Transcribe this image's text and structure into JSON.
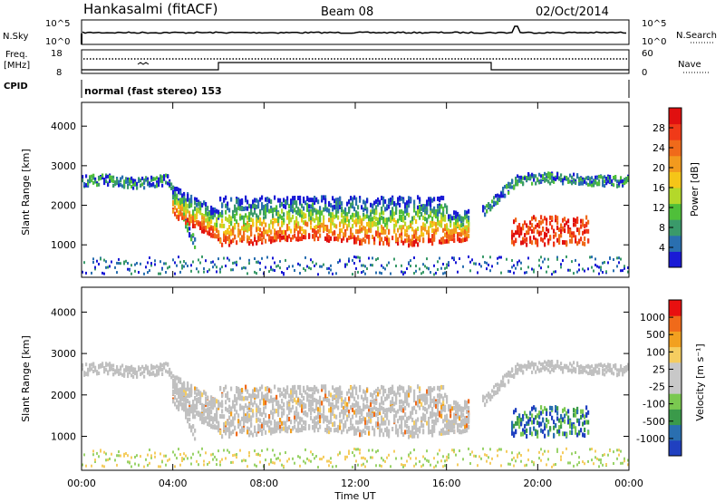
{
  "header": {
    "station": "Hankasalmi (fitACF)",
    "beam": "Beam 08",
    "date": "02/Oct/2014"
  },
  "sky_panel": {
    "label": "N.Sky",
    "left_ticks": [
      "10^5",
      "10^0"
    ],
    "right_ticks": [
      "10^5",
      "10^0"
    ],
    "right_label": "N.Search"
  },
  "freq_panel": {
    "label_line1": "Freq.",
    "label_line2": "[MHz]",
    "left_ticks": [
      "18",
      "8"
    ],
    "right_ticks": [
      "60",
      "0"
    ],
    "right_label": "Nave"
  },
  "cpid_panel": {
    "label": "CPID",
    "mode_text": "normal (fast stereo) 153"
  },
  "x_axis": {
    "label": "Time UT",
    "ticks": [
      "00:00",
      "04:00",
      "08:00",
      "12:00",
      "16:00",
      "20:00",
      "00:00"
    ]
  },
  "colors": {
    "power": [
      "#1a1ad6",
      "#2a6fb0",
      "#3a9a6a",
      "#4fbf3a",
      "#b4d82a",
      "#f5c518",
      "#f29a1e",
      "#f06a1a",
      "#f03a18",
      "#e01010"
    ],
    "velocity": [
      "#e81010",
      "#f06a1a",
      "#f2a020",
      "#f5cd60",
      "#c8c8c8",
      "#c8c8c8",
      "#7ac850",
      "#3a9a4a",
      "#2a6fb0",
      "#2040c0"
    ],
    "ground_scatter": "#c0c0c0"
  },
  "chart_data": [
    {
      "type": "heatmap",
      "quantity": "power",
      "ylabel": "Slant Range [km]",
      "xlabel": "Time UT",
      "y_ticks": [
        "1000",
        "2000",
        "3000",
        "4000"
      ],
      "ylim": [
        180,
        4600
      ],
      "xlim": [
        0,
        24
      ],
      "colorbar": {
        "label": "Power [dB]",
        "ticks": [
          "4",
          "8",
          "12",
          "16",
          "20",
          "24",
          "28"
        ],
        "range": [
          0,
          30
        ]
      }
    },
    {
      "type": "heatmap",
      "quantity": "velocity",
      "ylabel": "Slant Range [km]",
      "xlabel": "Time UT",
      "y_ticks": [
        "1000",
        "2000",
        "3000",
        "4000"
      ],
      "ylim": [
        180,
        4600
      ],
      "xlim": [
        0,
        24
      ],
      "colorbar": {
        "label": "Velocity [m s⁻¹]",
        "ticks": [
          "1000",
          "500",
          "100",
          "25",
          "-25",
          "-100",
          "-500",
          "-1000"
        ]
      }
    }
  ]
}
